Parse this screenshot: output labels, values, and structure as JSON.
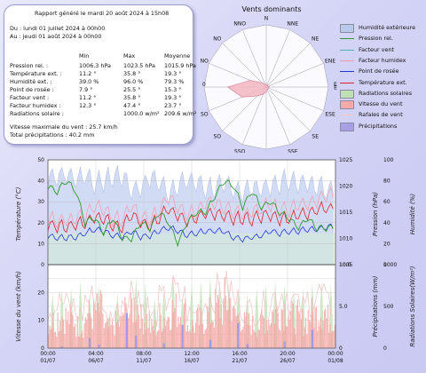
{
  "report": {
    "title": "Rapport généré le mardi 20 août 2024 à 15h08",
    "from": "Du : lundi 01 juillet 2024 à 00h00",
    "to": "Au : jeudi 01 août 2024 à 00h00",
    "headers": [
      "Min",
      "Max",
      "Moyenne"
    ],
    "rows": [
      {
        "label": "Pression rel. :",
        "min": "1006.3 hPa",
        "max": "1023.5 hPa",
        "avg": "1015.9 hPa"
      },
      {
        "label": "Température ext. :",
        "min": "11.2 °",
        "max": "35.8 °",
        "avg": "19.3 °"
      },
      {
        "label": "Humidité ext. :",
        "min": "39.0 %",
        "max": "96.0 %",
        "avg": "79.3 %"
      },
      {
        "label": "Point de rosée :",
        "min": "7.9 °",
        "max": "25.5 °",
        "avg": "15.3 °"
      },
      {
        "label": "Facteur vent :",
        "min": "11.2 °",
        "max": "35.8 °",
        "avg": "19.3 °"
      },
      {
        "label": "Facteur humidex :",
        "min": "12.3 °",
        "max": "47.4 °",
        "avg": "23.7 °"
      },
      {
        "label": "Radiations solaire :",
        "min": "",
        "max": "1000.0 w/m²",
        "avg": "209.6 w/m²"
      }
    ],
    "wind_max": "Vitesse maximale du vent : 25.7 km/h",
    "total_precip": "Total précipitations : 40.2 mm"
  },
  "wind_rose": {
    "title": "Vents dominants",
    "directions": [
      "N",
      "NNE",
      "NE",
      "ENE",
      "E",
      "ESE",
      "SE",
      "SSE",
      "S",
      "SSO",
      "SO",
      "OSO",
      "O",
      "ONO",
      "NO",
      "NNO"
    ],
    "ring_labels": [
      "0",
      "E"
    ]
  },
  "legend": [
    {
      "label": "Humidité extérieure",
      "color": "#b9c9ea",
      "kind": "box"
    },
    {
      "label": "Pression rel.",
      "color": "#2e9b2e",
      "kind": "line"
    },
    {
      "label": "Facteur vent",
      "color": "#4bb3b3",
      "kind": "line"
    },
    {
      "label": "Facteur humidex",
      "color": "#f09ab0",
      "kind": "line"
    },
    {
      "label": "Point de rosée",
      "color": "#2136d6",
      "kind": "line"
    },
    {
      "label": "Température ext.",
      "color": "#e0202a",
      "kind": "line"
    },
    {
      "label": "Radiations solaires",
      "color": "#bfe0b4",
      "kind": "box"
    },
    {
      "label": "Vitesse du vent",
      "color": "#f4aaa8",
      "kind": "box"
    },
    {
      "label": "Rafales de vent",
      "color": "#f0c8c8",
      "kind": "line"
    },
    {
      "label": "Précipitations",
      "color": "#a8a0e6",
      "kind": "box"
    }
  ],
  "chart_data": [
    {
      "type": "line",
      "title": "",
      "ylabel": "Température (°C)",
      "ylabel_right1": "Pression (hPa)",
      "ylabel_right2": "Humidité (%)",
      "ylim": [
        0,
        50
      ],
      "ylim_right1": [
        1005,
        1025
      ],
      "ylim_right2": [
        0,
        100
      ],
      "yticks": [
        "0",
        "10",
        "20",
        "30",
        "40",
        "50"
      ],
      "yticks_right1": [
        "1005",
        "1010",
        "1015",
        "1020",
        "1025"
      ],
      "yticks_right2": [
        "0",
        "20",
        "40",
        "60",
        "80",
        "100"
      ],
      "x_days": [
        1,
        2,
        3,
        4,
        5,
        6,
        7,
        8,
        9,
        10,
        11,
        12,
        13,
        14,
        15,
        16,
        17,
        18,
        19,
        20,
        21,
        22,
        23,
        24,
        25,
        26,
        27,
        28,
        29,
        30,
        31
      ],
      "series": [
        {
          "name": "Pression rel.",
          "values": [
            1020,
            1019,
            1021,
            1019,
            1013,
            1014,
            1011,
            1014,
            1010,
            1010,
            1013,
            1012,
            1015,
            1013,
            1009,
            1013,
            1015,
            1015,
            1018,
            1021,
            1020,
            1016,
            1019,
            1016,
            1017,
            1015,
            1014,
            1012,
            1014,
            1012,
            1012
          ]
        },
        {
          "name": "Température ext.",
          "values": [
            19,
            18,
            18,
            19,
            20,
            23,
            22,
            19,
            18,
            24,
            20,
            19,
            22,
            27,
            23,
            21,
            22,
            25,
            24,
            23,
            22,
            22,
            22,
            23,
            24,
            22,
            22,
            24,
            24,
            26,
            27
          ]
        },
        {
          "name": "Point de rosée",
          "values": [
            14,
            13,
            13,
            13,
            15,
            17,
            16,
            14,
            13,
            16,
            13,
            14,
            16,
            18,
            16,
            14,
            15,
            16,
            16,
            16,
            13,
            12,
            13,
            14,
            16,
            15,
            16,
            16,
            17,
            17,
            18
          ]
        },
        {
          "name": "Facteur humidex",
          "values": [
            22,
            21,
            21,
            22,
            23,
            28,
            26,
            22,
            21,
            29,
            23,
            22,
            26,
            33,
            27,
            24,
            25,
            30,
            29,
            27,
            25,
            24,
            25,
            27,
            29,
            26,
            26,
            29,
            29,
            31,
            33
          ]
        },
        {
          "name": "Humidité extérieure",
          "values": [
            84,
            85,
            86,
            82,
            86,
            78,
            80,
            84,
            85,
            71,
            74,
            83,
            79,
            68,
            77,
            80,
            79,
            73,
            74,
            76,
            72,
            70,
            72,
            74,
            74,
            78,
            82,
            76,
            80,
            75,
            72
          ]
        }
      ]
    },
    {
      "type": "bar",
      "title": "",
      "ylabel": "Vitesse du vent (km/h)",
      "ylabel_right1": "Précipitations (mm)",
      "ylabel_right2": "Radiations Solaires(W/m²)",
      "ylim": [
        0,
        30
      ],
      "ylim_right1": [
        0,
        10
      ],
      "ylim_right2": [
        0,
        1000
      ],
      "yticks": [
        "0",
        "10",
        "20",
        "30"
      ],
      "yticks_right1": [
        "0",
        "5.0",
        "10.0"
      ],
      "yticks_right2": [
        "0",
        "500",
        "1000"
      ],
      "x_days": [
        1,
        2,
        3,
        4,
        5,
        6,
        7,
        8,
        9,
        10,
        11,
        12,
        13,
        14,
        15,
        16,
        17,
        18,
        19,
        20,
        21,
        22,
        23,
        24,
        25,
        26,
        27,
        28,
        29,
        30,
        31
      ],
      "series": [
        {
          "name": "Vitesse du vent",
          "values": [
            12,
            14,
            13,
            10,
            15,
            17,
            9,
            11,
            16,
            19,
            13,
            9,
            14,
            17,
            16,
            10,
            12,
            15,
            18,
            21,
            14,
            11,
            10,
            13,
            16,
            18,
            14,
            12,
            15,
            17,
            13
          ]
        },
        {
          "name": "Rafales de vent",
          "values": [
            18,
            20,
            19,
            15,
            22,
            24,
            14,
            17,
            23,
            26,
            19,
            14,
            21,
            25,
            23,
            15,
            18,
            22,
            25,
            26,
            21,
            17,
            16,
            19,
            23,
            25,
            21,
            18,
            22,
            24,
            19
          ]
        },
        {
          "name": "Précipitations",
          "values": [
            0,
            0.2,
            0,
            0,
            1.2,
            0.4,
            0,
            0,
            4.2,
            1.5,
            0,
            0,
            0.6,
            0,
            2.8,
            0,
            0,
            1,
            0,
            0,
            3,
            0.5,
            0,
            0,
            0,
            0.8,
            0,
            0,
            2.2,
            0,
            0
          ]
        },
        {
          "name": "Radiations solaires",
          "values": [
            650,
            700,
            720,
            800,
            600,
            750,
            400,
            650,
            500,
            850,
            780,
            600,
            700,
            900,
            620,
            780,
            800,
            850,
            820,
            780,
            700,
            650,
            720,
            760,
            800,
            760,
            690,
            720,
            780,
            800,
            760
          ]
        }
      ],
      "xticks": [
        "00:00\n01/07",
        "04:00\n06/07",
        "08:00\n11/07",
        "12:00\n16/07",
        "16:00\n21/07",
        "20:00\n26/07",
        "00:00\n01/08"
      ]
    }
  ]
}
